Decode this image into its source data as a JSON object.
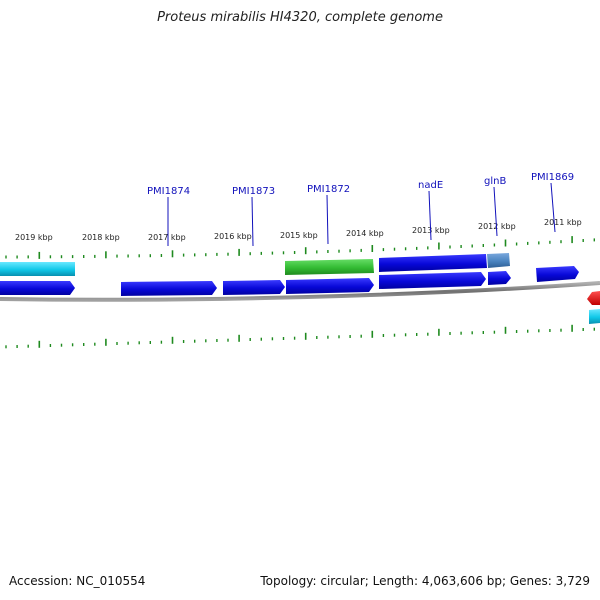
{
  "title": "Proteus mirabilis HI4320, complete genome",
  "footer": {
    "accession": "Accession: NC_010554",
    "stats": "Topology: circular; Length: 4,063,606 bp; Genes: 3,729"
  },
  "colors": {
    "gene_cds": "#1010e0",
    "gene_highlight": "#33bb33",
    "gene_cyan": "#10c8e8",
    "gene_steel": "#4a84c0",
    "gene_red": "#ee1010",
    "tick": "#1f8a1f",
    "backbone": "#808080",
    "label": "#1111bb"
  },
  "kbp_markers": [
    "2019 kbp",
    "2018 kbp",
    "2017 kbp",
    "2016 kbp",
    "2015 kbp",
    "2014 kbp",
    "2013 kbp",
    "2012 kbp",
    "2011 kbp"
  ],
  "gene_labels": [
    "PMI1874",
    "PMI1873",
    "PMI1872",
    "nadE",
    "glnB",
    "PMI1869"
  ]
}
